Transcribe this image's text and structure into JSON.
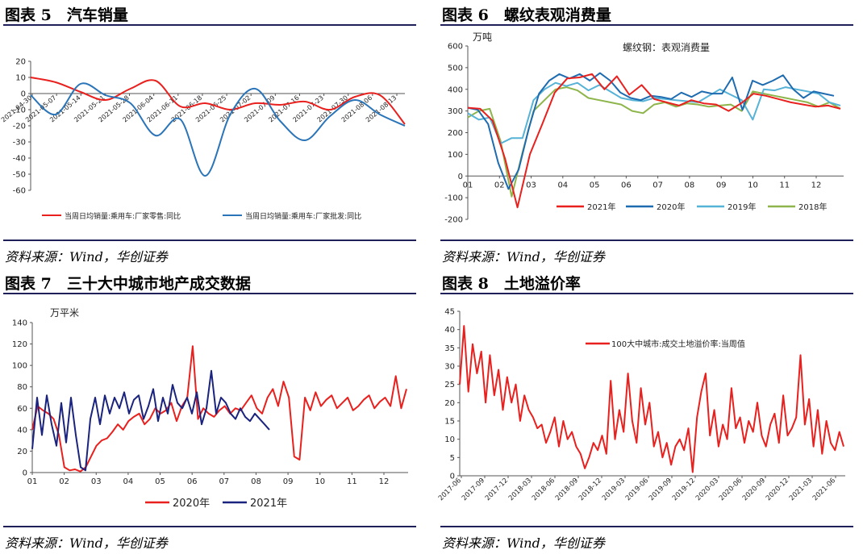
{
  "sources": [
    "资料来源：Wind，华创证券",
    "资料来源：Wind，华创证券",
    "资料来源：Wind，华创证券",
    "资料来源：Wind，华创证券"
  ],
  "chart_data": [
    {
      "type": "line",
      "title": "图表 5　汽车销量",
      "xlabel": "",
      "ylabel": "",
      "ylim": [
        -60,
        20
      ],
      "yticks": [
        20,
        10,
        0,
        -10,
        -20,
        -30,
        -40,
        -50,
        -60
      ],
      "categories": [
        "2021-04-30",
        "2021-05-07",
        "2021-05-14",
        "2021-05-21",
        "2021-05-28",
        "2021-06-04",
        "2021-06-11",
        "2021-06-18",
        "2021-06-25",
        "2021-07-02",
        "2021-07-09",
        "2021-07-16",
        "2021-07-23",
        "2021-07-30",
        "2021-08-06",
        "2021-08-13"
      ],
      "series": [
        {
          "name": "当周日均销量:乘用车:厂家零售:同比",
          "color": "#e8201e",
          "values": [
            10,
            7,
            1,
            -4,
            3,
            8,
            -8,
            -6,
            -10,
            -6,
            -7,
            -5,
            -10,
            -2,
            -1,
            -19
          ]
        },
        {
          "name": "当周日均销量:乘用车:厂家批发:同比",
          "color": "#2a74b8",
          "values": [
            -1,
            -13,
            6,
            -1,
            -6,
            -26,
            -16,
            -51,
            -13,
            3,
            -17,
            -29,
            -14,
            -4,
            -13,
            -20
          ]
        }
      ]
    },
    {
      "type": "line",
      "title": "图表 6　螺纹表观消费量",
      "unit": "万吨",
      "inner_title": "螺纹钢：表观消费量",
      "ylim": [
        -200,
        600
      ],
      "yticks": [
        600,
        500,
        400,
        300,
        200,
        100,
        0,
        -100,
        -200
      ],
      "xticks": [
        "01",
        "02",
        "03",
        "04",
        "05",
        "06",
        "07",
        "08",
        "09",
        "10",
        "11",
        "12"
      ],
      "series": [
        {
          "name": "2021年",
          "color": "#e8201e",
          "values": [
            315,
            310,
            255,
            80,
            -145,
            100,
            240,
            385,
            450,
            455,
            470,
            400,
            460,
            375,
            420,
            355,
            340,
            325,
            350,
            335,
            330,
            300,
            335,
            380,
            370,
            355,
            340,
            330,
            320,
            325,
            310
          ]
        },
        {
          "name": "2020年",
          "color": "#1e6bb0",
          "values": [
            315,
            305,
            240,
            60,
            -60,
            30,
            220,
            380,
            440,
            470,
            450,
            470,
            440,
            475,
            440,
            385,
            360,
            350,
            370,
            365,
            355,
            385,
            365,
            390,
            380,
            380,
            455,
            305,
            440,
            420,
            440,
            465,
            400,
            360,
            390,
            380,
            370
          ]
        },
        {
          "name": "2019年",
          "color": "#56b2d6",
          "values": [
            290,
            260,
            270,
            150,
            175,
            175,
            350,
            400,
            430,
            415,
            430,
            395,
            420,
            390,
            360,
            350,
            345,
            360,
            355,
            350,
            345,
            340,
            370,
            400,
            375,
            350,
            260,
            400,
            395,
            410,
            400,
            390,
            380,
            340,
            325
          ]
        },
        {
          "name": "2018年",
          "color": "#8db54b",
          "values": [
            270,
            300,
            310,
            160,
            -95,
            110,
            300,
            350,
            400,
            410,
            395,
            360,
            350,
            340,
            330,
            300,
            290,
            330,
            340,
            320,
            335,
            330,
            320,
            325,
            330,
            300,
            390,
            380,
            370,
            360,
            350,
            340,
            320,
            340,
            310
          ]
        }
      ]
    },
    {
      "type": "line",
      "title": "图表 7　三十大中城市地产成交数据",
      "unit": "万平米",
      "ylim": [
        0,
        140
      ],
      "yticks": [
        140,
        120,
        100,
        80,
        60,
        40,
        20,
        0
      ],
      "xticks": [
        "01",
        "02",
        "03",
        "04",
        "05",
        "06",
        "07",
        "08",
        "09",
        "10",
        "11",
        "12"
      ],
      "series": [
        {
          "name": "2020年",
          "color": "#e8201e",
          "values": [
            40,
            62,
            58,
            55,
            50,
            35,
            5,
            2,
            3,
            1,
            5,
            15,
            25,
            30,
            32,
            38,
            45,
            40,
            48,
            52,
            55,
            45,
            50,
            60,
            55,
            58,
            65,
            48,
            62,
            70,
            118,
            50,
            60,
            55,
            52,
            58,
            62,
            55,
            60,
            58,
            65,
            72,
            60,
            55,
            70,
            78,
            62,
            85,
            70,
            15,
            12,
            70,
            58,
            75,
            62,
            68,
            72,
            60,
            65,
            70,
            58,
            62,
            68,
            72,
            60,
            66,
            70,
            62,
            90,
            60,
            78
          ]
        },
        {
          "name": "2021年",
          "color": "#1a237e",
          "values": [
            22,
            70,
            35,
            72,
            45,
            25,
            65,
            28,
            70,
            35,
            5,
            2,
            50,
            70,
            45,
            72,
            55,
            70,
            60,
            75,
            55,
            68,
            72,
            50,
            62,
            78,
            48,
            70,
            55,
            82,
            65,
            60,
            70,
            55,
            75,
            45,
            60,
            95,
            55,
            70,
            65,
            55,
            50,
            60,
            52,
            48,
            55,
            50,
            45,
            40
          ]
        }
      ]
    },
    {
      "type": "line",
      "title": "图表 8　土地溢价率",
      "legend": "100大中城市:成交土地溢价率:当周值",
      "ylim": [
        0,
        45
      ],
      "yticks": [
        45,
        40,
        35,
        30,
        25,
        20,
        15,
        10,
        5,
        0
      ],
      "xticks": [
        "2017-06",
        "2017-09",
        "2017-12",
        "2018-03",
        "2018-06",
        "2018-09",
        "2018-12",
        "2019-03",
        "2019-06",
        "2019-09",
        "2019-12",
        "2020-03",
        "2020-06",
        "2020-09",
        "2020-12",
        "2021-03",
        "2021-06"
      ],
      "series": [
        {
          "name": "100大中城市:成交土地溢价率:当周值",
          "color": "#e8201e",
          "values": [
            25,
            41,
            23,
            36,
            28,
            34,
            20,
            33,
            22,
            29,
            18,
            27,
            20,
            25,
            15,
            22,
            18,
            16,
            13,
            14,
            9,
            12,
            16,
            8,
            15,
            10,
            12,
            8,
            6,
            2,
            5,
            9,
            7,
            11,
            6,
            26,
            10,
            18,
            12,
            28,
            15,
            9,
            24,
            14,
            20,
            8,
            12,
            5,
            9,
            3,
            8,
            10,
            7,
            13,
            1,
            16,
            23,
            28,
            11,
            18,
            8,
            14,
            10,
            24,
            13,
            16,
            9,
            15,
            12,
            20,
            11,
            8,
            14,
            17,
            9,
            22,
            11,
            13,
            16,
            33,
            14,
            21,
            8,
            18,
            6,
            15,
            9,
            7,
            12,
            8
          ]
        }
      ]
    }
  ]
}
